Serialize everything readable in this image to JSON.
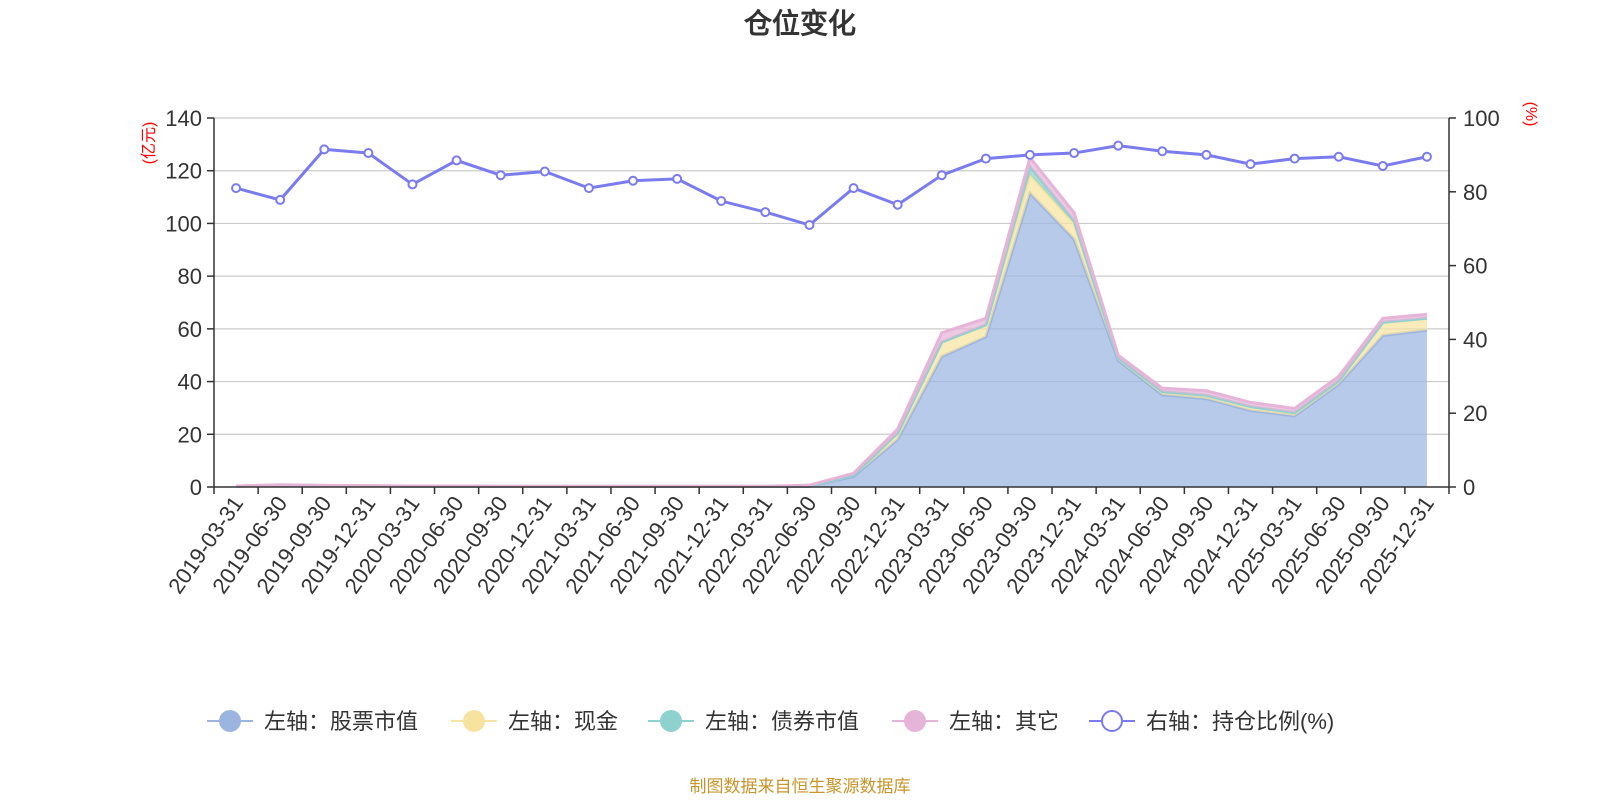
{
  "chart_data": {
    "type": "area",
    "title": "仓位变化",
    "categories": [
      "2019-03-31",
      "2019-06-30",
      "2019-09-30",
      "2019-12-31",
      "2020-03-31",
      "2020-06-30",
      "2020-09-30",
      "2020-12-31",
      "2021-03-31",
      "2021-06-30",
      "2021-09-30",
      "2021-12-31",
      "2022-03-31",
      "2022-06-30",
      "2022-09-30",
      "2022-12-31",
      "2023-03-31",
      "2023-06-30",
      "2023-09-30",
      "2023-12-31",
      "2024-03-31",
      "2024-06-30",
      "2024-09-30",
      "2024-12-31",
      "2025-03-31",
      "2025-06-30",
      "2025-09-30",
      "2025-12-31"
    ],
    "left_axis": {
      "unit": "(亿元)",
      "ylim": [
        0,
        140
      ],
      "ticks": [
        "0",
        "20",
        "40",
        "60",
        "80",
        "100",
        "120",
        "140"
      ]
    },
    "right_axis": {
      "unit": "(%)",
      "ylim": [
        0,
        100
      ],
      "ticks": [
        "0",
        "20",
        "40",
        "60",
        "80",
        "100"
      ]
    },
    "series": [
      {
        "name": "左轴：股票市值",
        "axis": "left",
        "kind": "stacked-area",
        "color": "#9cb5e0",
        "values": [
          0.3,
          0.7,
          0.5,
          0.4,
          0.3,
          0.3,
          0.2,
          0.2,
          0.2,
          0.2,
          0.2,
          0.2,
          0.2,
          0.2,
          4.0,
          18.0,
          49.5,
          57.0,
          111.5,
          94.0,
          48.0,
          35.0,
          33.5,
          29.0,
          27.0,
          39.0,
          57.5,
          59.5
        ]
      },
      {
        "name": "左轴：现金",
        "axis": "left",
        "kind": "stacked-area",
        "color": "#f7e3a0",
        "values": [
          0.05,
          0.05,
          0.05,
          0.05,
          0.05,
          0.05,
          0.05,
          0.05,
          0.05,
          0.05,
          0.05,
          0.05,
          0.05,
          0.2,
          0.6,
          2.5,
          5.5,
          4.5,
          7.0,
          6.0,
          1.0,
          1.2,
          1.3,
          1.5,
          1.2,
          1.3,
          5.0,
          4.5
        ]
      },
      {
        "name": "左轴：债券市值",
        "axis": "left",
        "kind": "stacked-area",
        "color": "#8fd1cf",
        "values": [
          0,
          0,
          0,
          0,
          0,
          0,
          0,
          0,
          0,
          0,
          0,
          0,
          0,
          0,
          0,
          0,
          0,
          0,
          3.0,
          1.0,
          0,
          0,
          0,
          0,
          0,
          0,
          0,
          0
        ]
      },
      {
        "name": "左轴：其它",
        "axis": "left",
        "kind": "stacked-area",
        "color": "#e6b4d8",
        "values": [
          0.05,
          0.1,
          0.05,
          0.05,
          0.05,
          0.05,
          0.05,
          0.05,
          0.05,
          0.05,
          0.05,
          0.05,
          0.05,
          0.3,
          0.6,
          1.5,
          3.5,
          2.5,
          3.5,
          3.0,
          1.0,
          1.3,
          1.7,
          1.6,
          1.6,
          1.7,
          1.5,
          1.5
        ]
      },
      {
        "name": "右轴：持仓比例(%)",
        "axis": "right",
        "kind": "line",
        "color": "#7b7bf0",
        "values": [
          81.0,
          77.8,
          91.5,
          90.5,
          82.0,
          88.5,
          84.5,
          85.5,
          81.0,
          83.0,
          83.5,
          77.5,
          74.5,
          71.0,
          81.0,
          76.5,
          84.5,
          89.0,
          90.0,
          90.5,
          92.5,
          91.0,
          90.0,
          87.5,
          89.0,
          89.5,
          87.0,
          89.5
        ]
      }
    ],
    "legend_position": "bottom",
    "grid": true
  },
  "source_text": "制图数据来自恒生聚源数据库",
  "colors": {
    "axis_unit": "#ff0000",
    "source": "#c8952b",
    "grid": "#cccccc",
    "axis": "#333333"
  }
}
